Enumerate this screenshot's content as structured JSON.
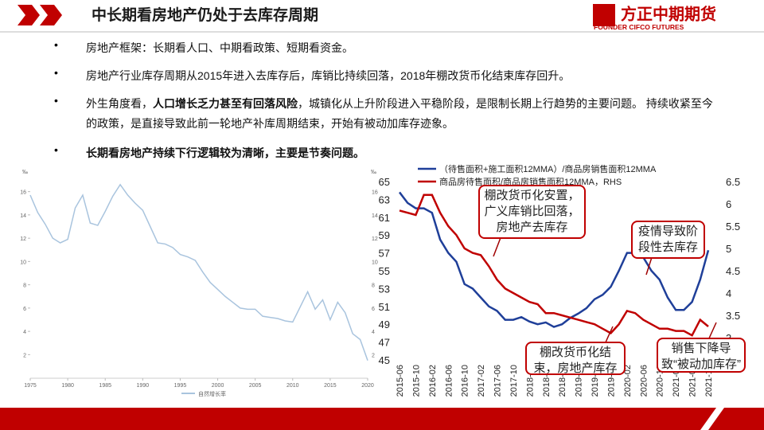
{
  "header": {
    "title": "中长期看房地产仍处于去库存周期",
    "logo": "方正中期期货",
    "logo_en": "FOUNDER CIFCO FUTURES"
  },
  "bullets": [
    {
      "segments": [
        {
          "text": "房地产框架：长期看人口、中期看政策、短期看资金。",
          "bold": false
        }
      ]
    },
    {
      "segments": [
        {
          "text": "房地产行业库存周期从2015年进入去库存后，库销比持续回落，2018年棚改货币化结束库存回升。",
          "bold": false
        }
      ]
    },
    {
      "segments": [
        {
          "text": "外生角度看，",
          "bold": false
        },
        {
          "text": "人口增长乏力甚至有回落风险",
          "bold": true
        },
        {
          "text": "，城镇化从上升阶段进入平稳阶段，是限制长期上行趋势的主要问题。 持续收紧至今的政策，是直接导致此前一轮地产补库周期结束，开始有被动加库存迹象。",
          "bold": false
        }
      ]
    },
    {
      "segments": [
        {
          "text": "长期看房地产持续下行逻辑较为清晰，主要是节奏问题。",
          "bold": true
        }
      ]
    }
  ],
  "chart_data": [
    {
      "type": "line",
      "y_unit": "‰",
      "series": [
        {
          "name": "自然增长率",
          "color": "#a9c4de",
          "x": [
            1975,
            1976,
            1977,
            1978,
            1979,
            1980,
            1981,
            1982,
            1983,
            1984,
            1985,
            1986,
            1987,
            1988,
            1989,
            1990,
            1991,
            1992,
            1993,
            1994,
            1995,
            1996,
            1997,
            1998,
            1999,
            2000,
            2001,
            2002,
            2003,
            2004,
            2005,
            2006,
            2007,
            2008,
            2009,
            2010,
            2011,
            2012,
            2013,
            2014,
            2015,
            2016,
            2017,
            2018,
            2019,
            2020
          ],
          "values": [
            15.7,
            14.2,
            13.2,
            12.0,
            11.6,
            11.9,
            14.6,
            15.7,
            13.3,
            13.1,
            14.3,
            15.6,
            16.6,
            15.7,
            15.0,
            14.4,
            13.0,
            11.6,
            11.5,
            11.2,
            10.6,
            10.4,
            10.1,
            9.1,
            8.2,
            7.6,
            7.0,
            6.5,
            6.0,
            5.9,
            5.9,
            5.3,
            5.2,
            5.1,
            4.9,
            4.8,
            6.1,
            7.4,
            5.9,
            6.7,
            5.0,
            6.5,
            5.6,
            3.8,
            3.3,
            1.5
          ]
        }
      ],
      "xlim": [
        1975,
        2020
      ],
      "xticks": [
        1975,
        1980,
        1985,
        1990,
        1995,
        2000,
        2005,
        2010,
        2015,
        2020
      ],
      "ylim": [
        1,
        17
      ],
      "yticks": [
        2,
        4,
        6,
        8,
        10,
        12,
        14,
        16
      ],
      "grid": false
    },
    {
      "type": "line",
      "categories": [
        "2015-06",
        null,
        "2015-10",
        null,
        "2016-02",
        null,
        "2016-06",
        null,
        "2016-10",
        null,
        "2017-02",
        null,
        "2017-06",
        null,
        "2017-10",
        null,
        "2018-02",
        null,
        "2018-06",
        null,
        "2018-10",
        null,
        "2019-02",
        null,
        "2019-06",
        null,
        "2019-10",
        null,
        "2020-02",
        null,
        "2020-06",
        null,
        "2020-10",
        null,
        "2021-02",
        null,
        "2021-06",
        null,
        "2021-10"
      ],
      "series": [
        {
          "name": "（待售面积+施工面积12MMA）/商品房销售面积12MMA",
          "color": "#1f3f99",
          "values": [
            63.8,
            62.6,
            62.0,
            62.0,
            61.5,
            58.5,
            57.0,
            56.0,
            53.5,
            53.0,
            52.0,
            51.0,
            50.5,
            49.5,
            49.5,
            49.8,
            49.3,
            49.0,
            49.2,
            48.7,
            49.0,
            49.7,
            50.2,
            50.8,
            51.8,
            52.3,
            53.2,
            55.0,
            57.0,
            57.0,
            56.5,
            55.0,
            54.0,
            52.0,
            50.6,
            50.6,
            51.5,
            54.0,
            57.3
          ]
        },
        {
          "name": "商品房待售面积/商品房销售面积12MMA，RHS",
          "color": "#c00000",
          "axis": "y2",
          "values": [
            5.85,
            5.8,
            5.75,
            6.2,
            6.2,
            5.8,
            5.5,
            5.3,
            5.0,
            4.9,
            4.85,
            4.6,
            4.3,
            4.1,
            4.0,
            3.9,
            3.8,
            3.75,
            3.55,
            3.55,
            3.5,
            3.45,
            3.4,
            3.35,
            3.3,
            3.2,
            3.1,
            3.3,
            3.6,
            3.55,
            3.4,
            3.3,
            3.2,
            3.2,
            3.15,
            3.15,
            3.05,
            3.4,
            3.25
          ]
        }
      ],
      "ylim": [
        45,
        65
      ],
      "yticks": [
        45,
        47,
        49,
        51,
        53,
        55,
        57,
        59,
        61,
        63,
        65
      ],
      "y2lim": [
        2.5,
        6.5
      ],
      "y2ticks": [
        2.5,
        3,
        3.5,
        4,
        4.5,
        5,
        5.5,
        6,
        6.5
      ],
      "grid": false,
      "annotations": [
        "棚改货币化安置，广义库销比回落，房地产去库存",
        "疫情导致阶段性去库存",
        "棚改货币化结束，房地产库存回升",
        "销售下降导致“被动加库存”"
      ]
    }
  ]
}
